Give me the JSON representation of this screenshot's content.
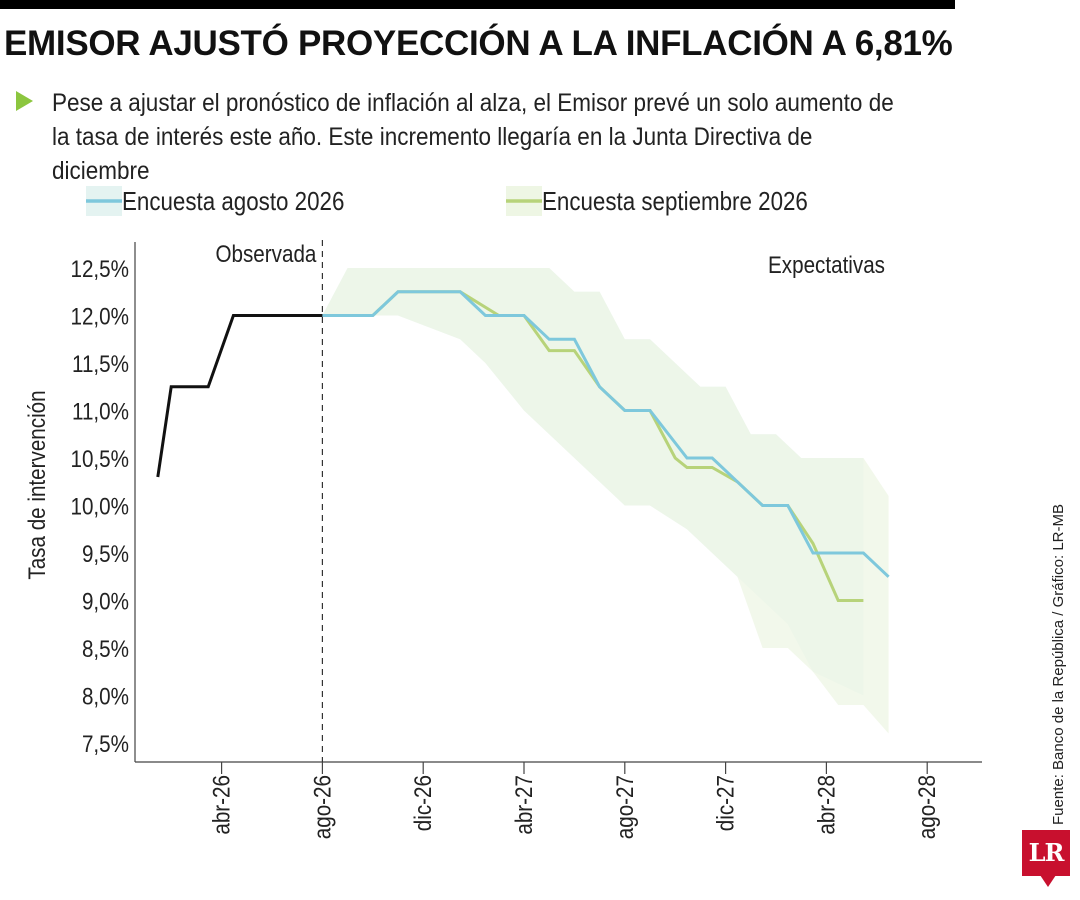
{
  "header": {
    "title": "EMISOR AJUSTÓ PROYECCIÓN A LA INFLACIÓN A 6,81%",
    "subtitle": "Pese a ajustar el pronóstico de inflación al alza, el Emisor prevé un solo aumento de la tasa de interés este año. Este incremento llegaría en la Junta Directiva de diciembre"
  },
  "footer": {
    "source": "Fuente: Banco de la República / Gráfico: LR-MB",
    "logo": "LR"
  },
  "colors": {
    "observed": "#111111",
    "agosto": "#7ec8dc",
    "septiembre": "#b7d37a",
    "band_agosto": "#e4f3f1",
    "band_septiembre": "#eef6e4",
    "bullet": "#8cc63f",
    "logo": "#c8102e"
  },
  "chart_data": {
    "type": "line",
    "ylabel": "Tasa de intervención",
    "x_tick_labels": [
      "abr-26",
      "ago-26",
      "dic-26",
      "abr-27",
      "ago-27",
      "dic-27",
      "abr-28",
      "ago-28"
    ],
    "y_tick_labels": [
      "12,5%",
      "12,0%",
      "11,5%",
      "11,0%",
      "10,5%",
      "10,0%",
      "9,5%",
      "9,0%",
      "8,5%",
      "8,0%",
      "7,5%"
    ],
    "ylim": [
      7.5,
      12.75
    ],
    "y_ticks": [
      12.5,
      12.0,
      11.5,
      11.0,
      10.5,
      10.0,
      9.5,
      9.0,
      8.5,
      8.0,
      7.5
    ],
    "x_range": [
      "2026-01",
      "2028-09"
    ],
    "regions": [
      {
        "label": "Observada",
        "end": "2026-08"
      },
      {
        "label": "Expectativas",
        "start": "2026-08"
      }
    ],
    "legend_position": "top",
    "series": [
      {
        "name": "Observada",
        "legend": false,
        "points": [
          [
            "2026-01-15",
            10.3
          ],
          [
            "2026-02-01",
            11.25
          ],
          [
            "2026-03-15",
            11.25
          ],
          [
            "2026-04-15",
            12.0
          ],
          [
            "2026-07-31",
            12.0
          ]
        ]
      },
      {
        "name": "Encuesta agosto 2026",
        "legend": true,
        "points": [
          [
            "2026-07-31",
            12.0
          ],
          [
            "2026-10-01",
            12.0
          ],
          [
            "2026-11-01",
            12.25
          ],
          [
            "2027-01-15",
            12.25
          ],
          [
            "2027-02-15",
            12.0
          ],
          [
            "2027-04-01",
            12.0
          ],
          [
            "2027-05-01",
            11.75
          ],
          [
            "2027-06-01",
            11.75
          ],
          [
            "2027-07-01",
            11.25
          ],
          [
            "2027-08-01",
            11.0
          ],
          [
            "2027-09-01",
            11.0
          ],
          [
            "2027-10-15",
            10.5
          ],
          [
            "2027-11-15",
            10.5
          ],
          [
            "2027-12-15",
            10.25
          ],
          [
            "2028-01-15",
            10.0
          ],
          [
            "2028-02-15",
            10.0
          ],
          [
            "2028-03-15",
            9.5
          ],
          [
            "2028-05-15",
            9.5
          ],
          [
            "2028-06-15",
            9.25
          ]
        ],
        "band_upper": [
          [
            "2026-07-31",
            12.0
          ],
          [
            "2026-09-01",
            12.5
          ],
          [
            "2027-05-01",
            12.5
          ],
          [
            "2027-06-01",
            12.25
          ],
          [
            "2027-07-01",
            12.25
          ],
          [
            "2027-08-01",
            11.75
          ],
          [
            "2027-09-01",
            11.75
          ],
          [
            "2027-11-01",
            11.25
          ],
          [
            "2027-12-01",
            11.25
          ],
          [
            "2028-01-01",
            10.75
          ],
          [
            "2028-02-01",
            10.75
          ],
          [
            "2028-03-01",
            10.5
          ],
          [
            "2028-05-15",
            10.5
          ]
        ],
        "band_lower": [
          [
            "2026-07-31",
            12.0
          ],
          [
            "2026-08-20",
            12.0
          ],
          [
            "2026-10-01",
            12.0
          ],
          [
            "2026-11-01",
            12.0
          ],
          [
            "2027-01-15",
            11.75
          ],
          [
            "2027-02-15",
            11.5
          ],
          [
            "2027-04-01",
            11.0
          ],
          [
            "2027-05-01",
            10.75
          ],
          [
            "2027-06-01",
            10.5
          ],
          [
            "2027-07-01",
            10.25
          ],
          [
            "2027-08-01",
            10.0
          ],
          [
            "2027-09-01",
            10.0
          ],
          [
            "2027-10-15",
            9.75
          ],
          [
            "2027-11-15",
            9.5
          ],
          [
            "2027-12-15",
            9.25
          ],
          [
            "2028-01-15",
            9.0
          ],
          [
            "2028-02-15",
            8.75
          ],
          [
            "2028-03-15",
            8.25
          ],
          [
            "2028-05-15",
            8.0
          ]
        ]
      },
      {
        "name": "Encuesta septiembre 2026",
        "legend": true,
        "points": [
          [
            "2026-07-31",
            12.0
          ],
          [
            "2026-10-01",
            12.0
          ],
          [
            "2026-11-01",
            12.25
          ],
          [
            "2027-01-15",
            12.25
          ],
          [
            "2027-03-01",
            12.0
          ],
          [
            "2027-04-01",
            12.0
          ],
          [
            "2027-05-01",
            11.63
          ],
          [
            "2027-06-01",
            11.63
          ],
          [
            "2027-07-01",
            11.25
          ],
          [
            "2027-08-01",
            11.0
          ],
          [
            "2027-09-01",
            11.0
          ],
          [
            "2027-10-01",
            10.5
          ],
          [
            "2027-10-15",
            10.4
          ],
          [
            "2027-11-15",
            10.4
          ],
          [
            "2027-12-15",
            10.25
          ],
          [
            "2028-01-15",
            10.0
          ],
          [
            "2028-02-15",
            10.0
          ],
          [
            "2028-03-15",
            9.6
          ],
          [
            "2028-04-15",
            9.0
          ],
          [
            "2028-05-15",
            9.0
          ]
        ],
        "band_upper": [
          [
            "2026-07-31",
            12.0
          ],
          [
            "2026-09-01",
            12.5
          ],
          [
            "2027-05-01",
            12.5
          ],
          [
            "2027-06-01",
            12.25
          ],
          [
            "2027-07-01",
            12.25
          ],
          [
            "2027-08-01",
            11.75
          ],
          [
            "2027-09-01",
            11.75
          ],
          [
            "2027-11-01",
            11.25
          ],
          [
            "2027-12-01",
            11.25
          ],
          [
            "2028-01-01",
            10.75
          ],
          [
            "2028-02-01",
            10.75
          ],
          [
            "2028-03-01",
            10.5
          ],
          [
            "2028-05-15",
            10.5
          ],
          [
            "2028-06-15",
            10.1
          ]
        ],
        "band_lower": [
          [
            "2026-07-31",
            12.0
          ],
          [
            "2026-10-01",
            12.0
          ],
          [
            "2026-11-01",
            12.0
          ],
          [
            "2027-01-15",
            11.75
          ],
          [
            "2027-02-15",
            11.5
          ],
          [
            "2027-04-01",
            11.0
          ],
          [
            "2027-05-01",
            10.75
          ],
          [
            "2027-06-01",
            10.5
          ],
          [
            "2027-07-01",
            10.25
          ],
          [
            "2027-08-01",
            10.0
          ],
          [
            "2027-09-01",
            10.0
          ],
          [
            "2027-10-15",
            9.75
          ],
          [
            "2027-11-15",
            9.5
          ],
          [
            "2027-12-15",
            9.25
          ],
          [
            "2028-01-15",
            8.5
          ],
          [
            "2028-02-15",
            8.5
          ],
          [
            "2028-03-15",
            8.25
          ],
          [
            "2028-04-15",
            7.9
          ],
          [
            "2028-05-15",
            7.9
          ],
          [
            "2028-06-15",
            7.6
          ]
        ]
      }
    ]
  }
}
